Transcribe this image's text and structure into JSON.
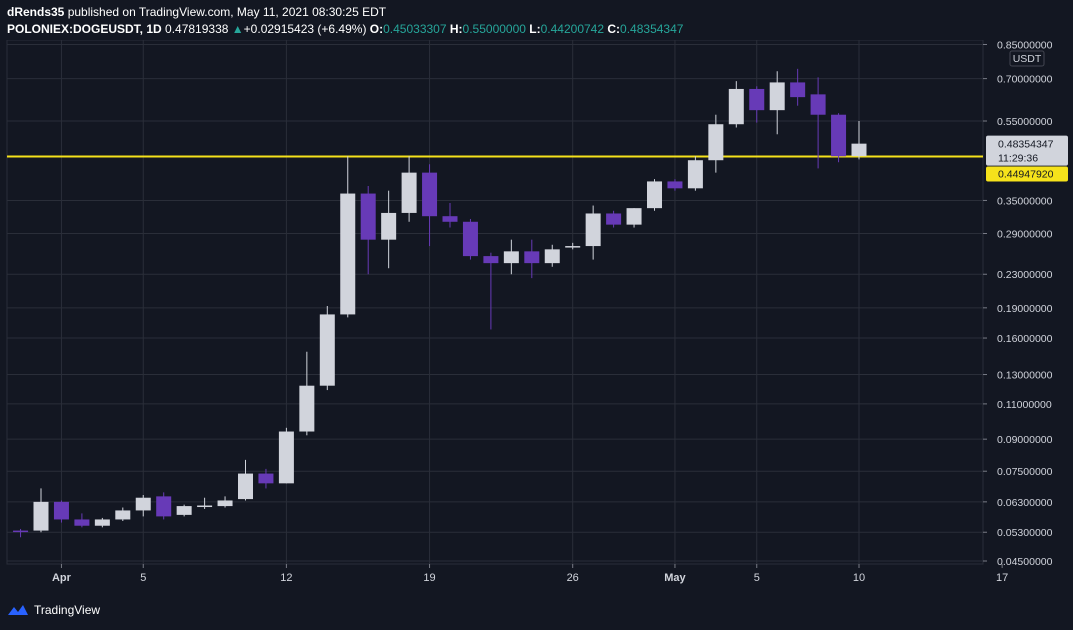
{
  "header": {
    "publisher": "dRends35",
    "published_text": " published on TradingView.com, May 11, 2021 08:30:25 EDT",
    "symbol": "POLONIEX:DOGEUSDT, 1D",
    "last": "0.47819338",
    "change": "+0.02915423 (+6.49%)",
    "o_label": "O:",
    "o_value": "0.45033307",
    "h_label": "H:",
    "h_value": "0.55000000",
    "l_label": "L:",
    "l_value": "0.44200742",
    "c_label": "C:",
    "c_value": "0.48354347"
  },
  "footer": {
    "brand": "TradingView"
  },
  "colors": {
    "up": "#d1d4dc",
    "down": "#673ab7",
    "line": "#f5e21b",
    "grid": "#2a2e39",
    "bg": "#131722"
  },
  "chart_data": {
    "type": "candlestick",
    "y_scale": "log",
    "currency_label": "USDT",
    "y_ticks": [
      0.85,
      0.7,
      0.55,
      0.35,
      0.29,
      0.23,
      0.19,
      0.16,
      0.13,
      0.11,
      0.09,
      0.075,
      0.063,
      0.053,
      0.045
    ],
    "y_tick_labels": [
      "0.85000000",
      "0.70000000",
      "0.55000000",
      "0.35000000",
      "0.29000000",
      "0.23000000",
      "0.19000000",
      "0.16000000",
      "0.13000000",
      "0.11000000",
      "0.09000000",
      "0.07500000",
      "0.06300000",
      "0.05300000",
      "0.04500000"
    ],
    "x_ticks": [
      {
        "label": "Apr",
        "day": 1
      },
      {
        "label": "5",
        "day": 5
      },
      {
        "label": "12",
        "day": 12
      },
      {
        "label": "19",
        "day": 19
      },
      {
        "label": "26",
        "day": 26
      },
      {
        "label": "May",
        "day": 31
      },
      {
        "label": "5",
        "day": 35
      },
      {
        "label": "10",
        "day": 40
      },
      {
        "label": "17",
        "day": 47
      }
    ],
    "candles": [
      {
        "date": "2021-03-31",
        "o": 0.0535,
        "h": 0.054,
        "l": 0.0515,
        "c": 0.0533
      },
      {
        "date": "2021-04-01",
        "o": 0.0535,
        "h": 0.068,
        "l": 0.053,
        "c": 0.063
      },
      {
        "date": "2021-04-02",
        "o": 0.063,
        "h": 0.0635,
        "l": 0.056,
        "c": 0.057
      },
      {
        "date": "2021-04-03",
        "o": 0.057,
        "h": 0.059,
        "l": 0.0545,
        "c": 0.055
      },
      {
        "date": "2021-04-04",
        "o": 0.055,
        "h": 0.0575,
        "l": 0.0545,
        "c": 0.057
      },
      {
        "date": "2021-04-05",
        "o": 0.057,
        "h": 0.061,
        "l": 0.0565,
        "c": 0.06
      },
      {
        "date": "2021-04-06",
        "o": 0.06,
        "h": 0.0655,
        "l": 0.058,
        "c": 0.0645
      },
      {
        "date": "2021-04-07",
        "o": 0.065,
        "h": 0.0665,
        "l": 0.057,
        "c": 0.058
      },
      {
        "date": "2021-04-08",
        "o": 0.0585,
        "h": 0.062,
        "l": 0.058,
        "c": 0.0615
      },
      {
        "date": "2021-04-09",
        "o": 0.0612,
        "h": 0.0645,
        "l": 0.0605,
        "c": 0.0617
      },
      {
        "date": "2021-04-10",
        "o": 0.0615,
        "h": 0.065,
        "l": 0.061,
        "c": 0.0635
      },
      {
        "date": "2021-04-11",
        "o": 0.064,
        "h": 0.08,
        "l": 0.0635,
        "c": 0.074
      },
      {
        "date": "2021-04-12",
        "o": 0.074,
        "h": 0.076,
        "l": 0.068,
        "c": 0.07
      },
      {
        "date": "2021-04-13",
        "o": 0.07,
        "h": 0.096,
        "l": 0.07,
        "c": 0.094
      },
      {
        "date": "2021-04-14",
        "o": 0.094,
        "h": 0.148,
        "l": 0.092,
        "c": 0.122
      },
      {
        "date": "2021-04-15",
        "o": 0.122,
        "h": 0.192,
        "l": 0.119,
        "c": 0.183
      },
      {
        "date": "2021-04-16",
        "o": 0.183,
        "h": 0.45,
        "l": 0.18,
        "c": 0.364
      },
      {
        "date": "2021-04-17",
        "o": 0.364,
        "h": 0.38,
        "l": 0.23,
        "c": 0.28
      },
      {
        "date": "2021-04-18",
        "o": 0.28,
        "h": 0.37,
        "l": 0.238,
        "c": 0.326
      },
      {
        "date": "2021-04-19",
        "o": 0.326,
        "h": 0.45,
        "l": 0.31,
        "c": 0.41
      },
      {
        "date": "2021-04-20",
        "o": 0.41,
        "h": 0.43,
        "l": 0.27,
        "c": 0.32
      },
      {
        "date": "2021-04-21",
        "o": 0.32,
        "h": 0.345,
        "l": 0.3,
        "c": 0.31
      },
      {
        "date": "2021-04-22",
        "o": 0.31,
        "h": 0.315,
        "l": 0.25,
        "c": 0.255
      },
      {
        "date": "2021-04-23",
        "o": 0.255,
        "h": 0.26,
        "l": 0.168,
        "c": 0.245
      },
      {
        "date": "2021-04-24",
        "o": 0.245,
        "h": 0.28,
        "l": 0.23,
        "c": 0.262
      },
      {
        "date": "2021-04-25",
        "o": 0.262,
        "h": 0.28,
        "l": 0.225,
        "c": 0.245
      },
      {
        "date": "2021-04-26",
        "o": 0.245,
        "h": 0.272,
        "l": 0.24,
        "c": 0.265
      },
      {
        "date": "2021-04-27",
        "o": 0.27,
        "h": 0.275,
        "l": 0.265,
        "c": 0.27
      },
      {
        "date": "2021-04-28",
        "o": 0.27,
        "h": 0.34,
        "l": 0.25,
        "c": 0.325
      },
      {
        "date": "2021-04-29",
        "o": 0.325,
        "h": 0.33,
        "l": 0.3,
        "c": 0.305
      },
      {
        "date": "2021-04-30",
        "o": 0.305,
        "h": 0.335,
        "l": 0.3,
        "c": 0.335
      },
      {
        "date": "2021-05-01",
        "o": 0.335,
        "h": 0.395,
        "l": 0.33,
        "c": 0.39
      },
      {
        "date": "2021-05-02",
        "o": 0.39,
        "h": 0.395,
        "l": 0.37,
        "c": 0.375
      },
      {
        "date": "2021-05-03",
        "o": 0.375,
        "h": 0.45,
        "l": 0.37,
        "c": 0.44
      },
      {
        "date": "2021-05-04",
        "o": 0.44,
        "h": 0.57,
        "l": 0.41,
        "c": 0.54
      },
      {
        "date": "2021-05-05",
        "o": 0.54,
        "h": 0.69,
        "l": 0.53,
        "c": 0.66
      },
      {
        "date": "2021-05-06",
        "o": 0.66,
        "h": 0.67,
        "l": 0.545,
        "c": 0.585
      },
      {
        "date": "2021-05-07",
        "o": 0.585,
        "h": 0.73,
        "l": 0.51,
        "c": 0.685
      },
      {
        "date": "2021-05-08",
        "o": 0.685,
        "h": 0.74,
        "l": 0.6,
        "c": 0.63
      },
      {
        "date": "2021-05-09",
        "o": 0.64,
        "h": 0.705,
        "l": 0.42,
        "c": 0.57
      },
      {
        "date": "2021-05-10",
        "o": 0.57,
        "h": 0.575,
        "l": 0.435,
        "c": 0.45
      },
      {
        "date": "2021-05-11",
        "o": 0.4503,
        "h": 0.55,
        "l": 0.442,
        "c": 0.4835
      }
    ],
    "horizontal_line": {
      "value": 0.4494792,
      "label": "0.44947920"
    },
    "price_label": {
      "value": 0.48354347,
      "label": "0.48354347",
      "countdown": "11:29:36"
    }
  }
}
